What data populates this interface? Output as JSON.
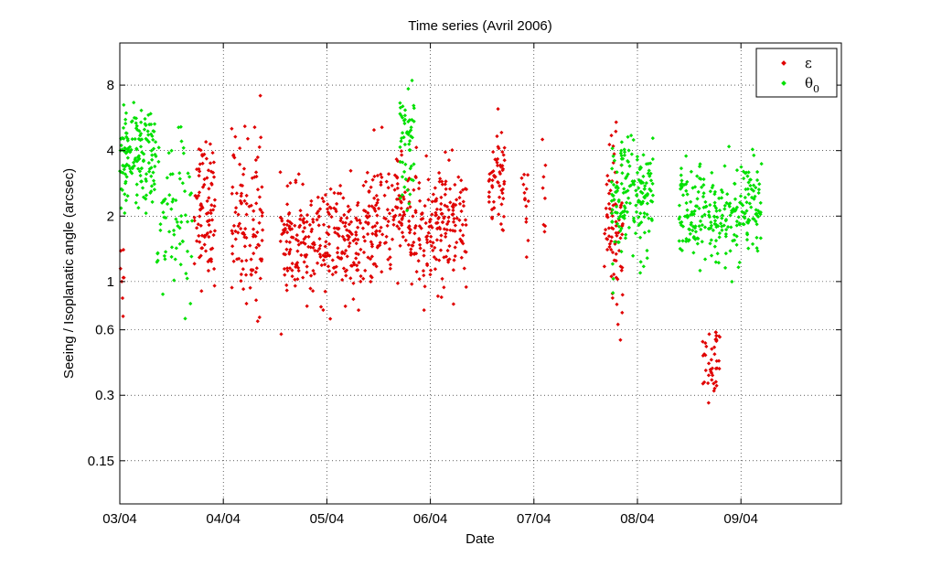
{
  "chart_data": {
    "type": "scatter",
    "title": "Time series (Avril 2006)",
    "xlabel": "Date",
    "ylabel": "Seeing / Isoplanatic angle (arcsec)",
    "y_scale": "log",
    "xlim": [
      0,
      7
    ],
    "ylim": [
      0.095,
      12.5
    ],
    "grid": true,
    "legend_position": "top-right",
    "x_ticks": [
      {
        "value": 0,
        "label": "03/04"
      },
      {
        "value": 1,
        "label": "04/04"
      },
      {
        "value": 2,
        "label": "05/04"
      },
      {
        "value": 3,
        "label": "06/04"
      },
      {
        "value": 4,
        "label": "07/04"
      },
      {
        "value": 5,
        "label": "08/04"
      },
      {
        "value": 6,
        "label": "09/04"
      }
    ],
    "y_ticks": [
      {
        "value": 0.15,
        "label": "0.15"
      },
      {
        "value": 0.3,
        "label": "0.3"
      },
      {
        "value": 0.6,
        "label": "0.6"
      },
      {
        "value": 1,
        "label": "1"
      },
      {
        "value": 2,
        "label": "2"
      },
      {
        "value": 4,
        "label": "4"
      },
      {
        "value": 8,
        "label": "8"
      }
    ],
    "series": [
      {
        "name": "ε",
        "name_sub": "",
        "color": "#e00000",
        "marker": "dot",
        "clusters": [
          {
            "x_start": 0.0,
            "x_end": 0.04,
            "y_center": 1.2,
            "spread": 0.15,
            "count": 8
          },
          {
            "x_start": 0.72,
            "x_end": 0.92,
            "y_center": 2.2,
            "spread": 0.16,
            "count": 90
          },
          {
            "x_start": 1.08,
            "x_end": 1.38,
            "y_center": 1.9,
            "spread": 0.2,
            "count": 110
          },
          {
            "x_start": 1.55,
            "x_end": 2.35,
            "y_center": 1.5,
            "spread": 0.12,
            "count": 260
          },
          {
            "x_start": 2.35,
            "x_end": 3.35,
            "y_center": 1.85,
            "spread": 0.14,
            "count": 340
          },
          {
            "x_start": 3.55,
            "x_end": 3.72,
            "y_center": 2.9,
            "spread": 0.13,
            "count": 60
          },
          {
            "x_start": 3.88,
            "x_end": 3.95,
            "y_center": 2.5,
            "spread": 0.1,
            "count": 14
          },
          {
            "x_start": 4.08,
            "x_end": 4.12,
            "y_center": 2.7,
            "spread": 0.15,
            "count": 8
          },
          {
            "x_start": 4.68,
            "x_end": 4.86,
            "y_center": 1.8,
            "spread": 0.2,
            "count": 80
          },
          {
            "x_start": 5.63,
            "x_end": 5.8,
            "y_center": 0.43,
            "spread": 0.1,
            "count": 45
          }
        ]
      },
      {
        "name": "θ",
        "name_sub": "0",
        "color": "#00e000",
        "marker": "dot",
        "clusters": [
          {
            "x_start": 0.0,
            "x_end": 0.35,
            "y_center": 3.6,
            "spread": 0.12,
            "count": 150
          },
          {
            "x_start": 0.35,
            "x_end": 0.7,
            "y_center": 2.0,
            "spread": 0.18,
            "count": 70
          },
          {
            "x_start": 2.7,
            "x_end": 2.85,
            "y_center": 4.2,
            "spread": 0.14,
            "count": 55
          },
          {
            "x_start": 4.75,
            "x_end": 5.15,
            "y_center": 2.4,
            "spread": 0.13,
            "count": 170
          },
          {
            "x_start": 5.4,
            "x_end": 6.2,
            "y_center": 2.1,
            "spread": 0.11,
            "count": 260
          }
        ]
      }
    ]
  }
}
